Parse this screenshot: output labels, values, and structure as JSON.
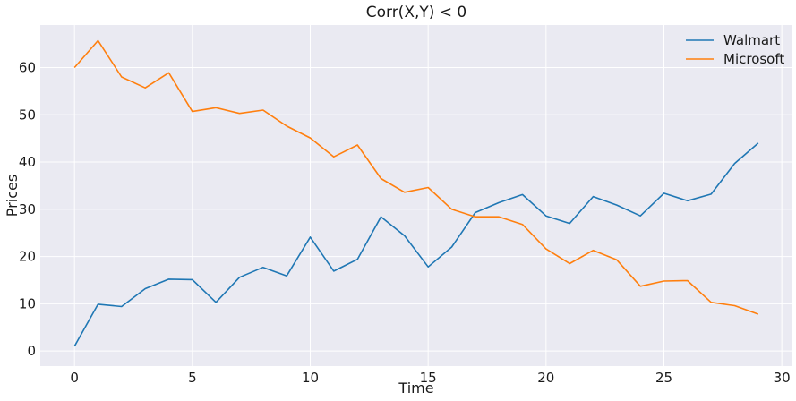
{
  "chart_data": {
    "type": "line",
    "title": "Corr(X,Y) < 0",
    "xlabel": "Time",
    "ylabel": "Prices",
    "xlim": [
      -1.45,
      30.45
    ],
    "ylim": [
      -3.2,
      69
    ],
    "xticks": [
      0,
      5,
      10,
      15,
      20,
      25,
      30
    ],
    "yticks": [
      0,
      10,
      20,
      30,
      40,
      50,
      60
    ],
    "grid": true,
    "legend_position": "top-right",
    "x": [
      0,
      1,
      2,
      3,
      4,
      5,
      6,
      7,
      8,
      9,
      10,
      11,
      12,
      13,
      14,
      15,
      16,
      17,
      18,
      19,
      20,
      21,
      22,
      23,
      24,
      25,
      26,
      27,
      28,
      29
    ],
    "series": [
      {
        "name": "Walmart",
        "color": "#1f77b4",
        "values": [
          1.0,
          9.9,
          9.4,
          13.2,
          15.2,
          15.1,
          10.3,
          15.6,
          17.7,
          15.9,
          24.1,
          16.9,
          19.4,
          28.4,
          24.4,
          17.8,
          22.0,
          29.3,
          31.4,
          33.1,
          28.6,
          27.0,
          32.7,
          30.9,
          28.6,
          33.4,
          31.8,
          33.2,
          39.7,
          44.0
        ]
      },
      {
        "name": "Microsoft",
        "color": "#ff7f0e",
        "values": [
          60.0,
          65.7,
          58.0,
          55.7,
          58.9,
          50.7,
          51.5,
          50.3,
          51.0,
          47.6,
          45.1,
          41.1,
          43.6,
          36.5,
          33.6,
          34.6,
          30.0,
          28.4,
          28.4,
          26.8,
          21.6,
          18.5,
          21.3,
          19.3,
          13.7,
          14.8,
          14.9,
          10.3,
          9.6,
          7.8
        ]
      }
    ]
  }
}
